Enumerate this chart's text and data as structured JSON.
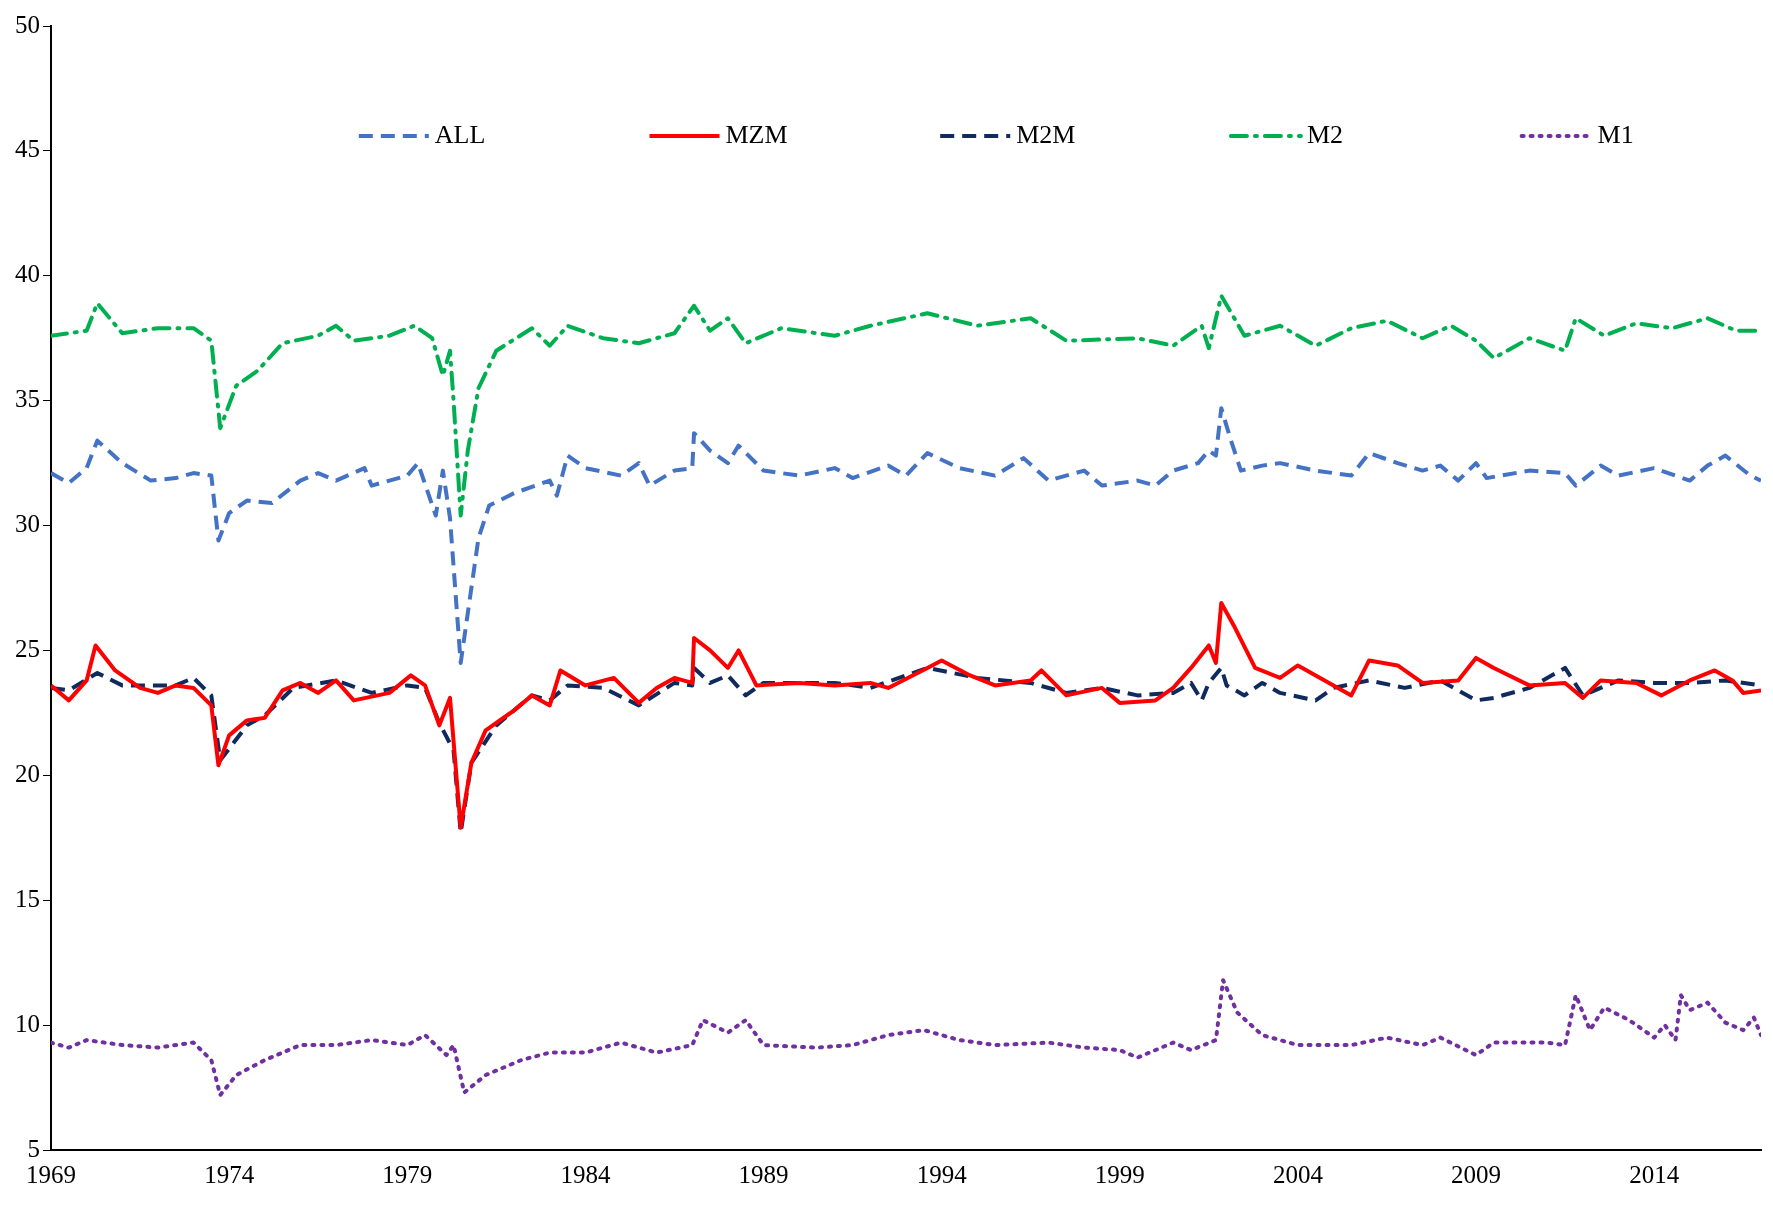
{
  "chart_data": {
    "type": "line",
    "xlim": [
      1969,
      2017
    ],
    "xticks": [
      1969,
      1974,
      1979,
      1984,
      1989,
      1994,
      1999,
      2004,
      2009,
      2014
    ],
    "ylim": [
      5,
      50
    ],
    "yticks": [
      5,
      10,
      15,
      20,
      25,
      30,
      35,
      40,
      45,
      50
    ],
    "grid": false,
    "legend": "top",
    "marker": "none",
    "series": [
      {
        "name": "ALL",
        "color": "#4472c4",
        "line_style": "dashed",
        "x": [
          1969,
          1969.5,
          1970,
          1970.3,
          1971,
          1971.8,
          1972.5,
          1973,
          1973.5,
          1973.7,
          1974,
          1974.5,
          1975.2,
          1976,
          1976.5,
          1977,
          1977.8,
          1978,
          1979,
          1979.3,
          1979.8,
          1980,
          1980.2,
          1980.5,
          1981,
          1981.3,
          1982,
          1983,
          1983.2,
          1983.5,
          1984,
          1985,
          1985.5,
          1985.8,
          1986.5,
          1987,
          1987.05,
          1987.5,
          1988,
          1988.3,
          1989,
          1990,
          1991,
          1991.5,
          1992.5,
          1993,
          1993.6,
          1994.5,
          1995.5,
          1996.3,
          1997,
          1998,
          1998.5,
          1999.5,
          2000,
          2000.5,
          2001.2,
          2001.5,
          2001.7,
          2001.85,
          2002.1,
          2002.4,
          2003,
          2003.5,
          2004.5,
          2005.5,
          2006,
          2006.8,
          2007.5,
          2008,
          2008.5,
          2009,
          2009.3,
          2010.5,
          2011.5,
          2011.8,
          2012.5,
          2013,
          2014,
          2015,
          2015.5,
          2016,
          2016.7,
          2017
        ],
        "values": [
          32.1,
          31.7,
          32.3,
          33.4,
          32.5,
          31.8,
          31.9,
          32.1,
          32.0,
          29.4,
          30.5,
          31.0,
          30.9,
          31.8,
          32.1,
          31.8,
          32.3,
          31.6,
          32.0,
          32.5,
          30.4,
          32.2,
          30.3,
          24.5,
          29.5,
          30.8,
          31.3,
          31.8,
          31.2,
          32.8,
          32.3,
          32.0,
          32.5,
          31.6,
          32.2,
          32.3,
          33.7,
          33.0,
          32.5,
          33.2,
          32.2,
          32.0,
          32.3,
          31.9,
          32.4,
          32.0,
          32.9,
          32.3,
          32.0,
          32.7,
          31.8,
          32.2,
          31.6,
          31.8,
          31.6,
          32.2,
          32.5,
          33.0,
          32.8,
          34.7,
          33.5,
          32.2,
          32.4,
          32.5,
          32.2,
          32.0,
          32.9,
          32.5,
          32.2,
          32.4,
          31.8,
          32.5,
          31.9,
          32.2,
          32.1,
          31.6,
          32.4,
          32.0,
          32.3,
          31.8,
          32.4,
          32.8,
          32.0,
          31.8
        ]
      },
      {
        "name": "MZM",
        "color": "#ff0000",
        "line_style": "solid",
        "x": [
          1969,
          1969.5,
          1970,
          1970.25,
          1970.8,
          1971.5,
          1972,
          1972.5,
          1973,
          1973.5,
          1973.7,
          1974,
          1974.5,
          1975,
          1975.5,
          1976,
          1976.5,
          1977,
          1977.5,
          1978.5,
          1979.1,
          1979.5,
          1979.9,
          1980.2,
          1980.5,
          1980.8,
          1981.2,
          1982,
          1982.5,
          1983,
          1983.3,
          1984,
          1984.8,
          1985.5,
          1986,
          1986.5,
          1987,
          1987.05,
          1987.5,
          1988,
          1988.3,
          1988.8,
          1990,
          1991,
          1992,
          1992.5,
          1993.6,
          1994,
          1994.8,
          1995.5,
          1996.5,
          1996.8,
          1997.5,
          1998.5,
          1999,
          2000,
          2000.5,
          2001,
          2001.5,
          2001.7,
          2001.85,
          2002.2,
          2002.8,
          2003.5,
          2004,
          2005,
          2005.5,
          2006,
          2006.8,
          2007.5,
          2008.5,
          2009,
          2009.5,
          2010.5,
          2011.5,
          2012,
          2012.5,
          2013.5,
          2014.2,
          2015,
          2015.7,
          2016.2,
          2016.5,
          2017
        ],
        "values": [
          23.6,
          23.0,
          23.8,
          25.2,
          24.2,
          23.5,
          23.3,
          23.6,
          23.5,
          22.8,
          20.4,
          21.6,
          22.2,
          22.3,
          23.4,
          23.7,
          23.3,
          23.8,
          23.0,
          23.3,
          24.0,
          23.6,
          22.0,
          23.1,
          17.9,
          20.5,
          21.8,
          22.6,
          23.2,
          22.8,
          24.2,
          23.6,
          23.9,
          22.9,
          23.5,
          23.9,
          23.7,
          25.5,
          25.0,
          24.3,
          25.0,
          23.6,
          23.7,
          23.6,
          23.7,
          23.5,
          24.3,
          24.6,
          24.0,
          23.6,
          23.8,
          24.2,
          23.2,
          23.5,
          22.9,
          23.0,
          23.5,
          24.3,
          25.2,
          24.5,
          26.9,
          26.0,
          24.3,
          23.9,
          24.4,
          23.6,
          23.2,
          24.6,
          24.4,
          23.7,
          23.8,
          24.7,
          24.3,
          23.6,
          23.7,
          23.1,
          23.8,
          23.7,
          23.2,
          23.8,
          24.2,
          23.8,
          23.3,
          23.4
        ]
      },
      {
        "name": "M2M",
        "color": "#0e2a5e",
        "line_style": "dashed",
        "x": [
          1969,
          1969.5,
          1970.3,
          1971,
          1972.5,
          1973,
          1973.5,
          1973.75,
          1974.5,
          1975,
          1975.8,
          1977,
          1978,
          1979,
          1979.5,
          1979.9,
          1980.3,
          1980.5,
          1980.8,
          1981.5,
          1982.5,
          1983,
          1983.5,
          1984.5,
          1985.5,
          1986.5,
          1987,
          1987.05,
          1987.5,
          1988,
          1988.5,
          1989,
          1991,
          1992,
          1993.6,
          1995,
          1996.5,
          1997.5,
          1998.5,
          1999.5,
          2000.5,
          2001,
          2001.3,
          2001.5,
          2001.85,
          2002,
          2002.5,
          2003,
          2003.5,
          2004.5,
          2005,
          2006,
          2007,
          2008,
          2009,
          2009.5,
          2010.5,
          2011.5,
          2012,
          2013,
          2014,
          2015,
          2016,
          2017
        ],
        "values": [
          23.5,
          23.4,
          24.1,
          23.6,
          23.6,
          23.9,
          23.2,
          20.6,
          22.0,
          22.4,
          23.5,
          23.8,
          23.3,
          23.6,
          23.5,
          22.1,
          21.0,
          17.7,
          20.5,
          22.0,
          23.2,
          23.0,
          23.6,
          23.5,
          22.8,
          23.7,
          23.6,
          24.3,
          23.7,
          24.0,
          23.2,
          23.7,
          23.7,
          23.5,
          24.3,
          23.9,
          23.7,
          23.3,
          23.5,
          23.2,
          23.3,
          23.7,
          23.0,
          23.7,
          24.3,
          23.6,
          23.2,
          23.7,
          23.3,
          23.0,
          23.5,
          23.8,
          23.5,
          23.8,
          23.0,
          23.1,
          23.5,
          24.3,
          23.2,
          23.8,
          23.7,
          23.7,
          23.8,
          23.6
        ]
      },
      {
        "name": "M2",
        "color": "#00b050",
        "line_style": "dashdot",
        "x": [
          1969,
          1970,
          1970.3,
          1971,
          1972,
          1973,
          1973.5,
          1973.75,
          1974.2,
          1974.8,
          1975.5,
          1976.5,
          1977,
          1977.5,
          1978.5,
          1979.2,
          1979.7,
          1980,
          1980.2,
          1980.3,
          1980.5,
          1980.7,
          1981,
          1981.5,
          1982.5,
          1983,
          1983.5,
          1984.5,
          1985.5,
          1986.5,
          1987.05,
          1987.5,
          1988,
          1988.5,
          1989.5,
          1991,
          1992,
          1993.6,
          1995,
          1996.5,
          1997.5,
          1999.5,
          2000.5,
          2001.3,
          2001.5,
          2001.85,
          2002.5,
          2003.5,
          2004.5,
          2005.5,
          2006.5,
          2007.5,
          2008.3,
          2009,
          2009.5,
          2010.5,
          2011.5,
          2011.8,
          2012.6,
          2013.5,
          2014.5,
          2015.5,
          2016.3,
          2017
        ],
        "values": [
          37.6,
          37.8,
          38.9,
          37.7,
          37.9,
          37.9,
          37.4,
          33.9,
          35.6,
          36.2,
          37.3,
          37.6,
          38.0,
          37.4,
          37.6,
          38.0,
          37.5,
          36.0,
          37.0,
          35.0,
          30.4,
          33.0,
          35.5,
          37.0,
          37.9,
          37.2,
          38.0,
          37.5,
          37.3,
          37.7,
          38.8,
          37.8,
          38.3,
          37.3,
          37.9,
          37.6,
          38.0,
          38.5,
          38.0,
          38.3,
          37.4,
          37.5,
          37.2,
          38.0,
          37.1,
          39.2,
          37.6,
          38.0,
          37.2,
          37.9,
          38.2,
          37.5,
          38.0,
          37.4,
          36.7,
          37.5,
          37.0,
          38.3,
          37.6,
          38.1,
          37.9,
          38.3,
          37.8,
          37.8
        ]
      },
      {
        "name": "M1",
        "color": "#7030a0",
        "line_style": "dotted",
        "x": [
          1969,
          1969.5,
          1970,
          1971,
          1972,
          1973,
          1973.5,
          1973.75,
          1974.2,
          1975,
          1976,
          1977,
          1978,
          1979,
          1979.5,
          1980.1,
          1980.3,
          1980.6,
          1981.2,
          1982.2,
          1983,
          1984,
          1985,
          1986,
          1987,
          1987.3,
          1988,
          1988.5,
          1989,
          1990.5,
          1991.5,
          1992.5,
          1993.5,
          1994.5,
          1995.5,
          1997,
          1998,
          1999,
          1999.5,
          2000.5,
          2001,
          2001.7,
          2001.9,
          2002.3,
          2003,
          2004,
          2005.5,
          2006.5,
          2007.5,
          2008,
          2009,
          2009.5,
          2011,
          2011.5,
          2011.8,
          2012.2,
          2012.6,
          2013.3,
          2014,
          2014.3,
          2014.6,
          2014.75,
          2015,
          2015.5,
          2016,
          2016.5,
          2016.8,
          2017
        ],
        "values": [
          9.3,
          9.1,
          9.4,
          9.2,
          9.1,
          9.3,
          8.6,
          7.2,
          8.0,
          8.6,
          9.2,
          9.2,
          9.4,
          9.2,
          9.6,
          8.8,
          9.2,
          7.3,
          8.0,
          8.6,
          8.9,
          8.9,
          9.3,
          8.9,
          9.2,
          10.2,
          9.7,
          10.2,
          9.2,
          9.1,
          9.2,
          9.6,
          9.8,
          9.4,
          9.2,
          9.3,
          9.1,
          9.0,
          8.7,
          9.3,
          9.0,
          9.4,
          11.8,
          10.5,
          9.6,
          9.2,
          9.2,
          9.5,
          9.2,
          9.5,
          8.8,
          9.3,
          9.3,
          9.2,
          11.2,
          9.8,
          10.7,
          10.2,
          9.5,
          10.0,
          9.4,
          11.2,
          10.6,
          10.9,
          10.1,
          9.8,
          10.3,
          9.6
        ]
      }
    ]
  }
}
